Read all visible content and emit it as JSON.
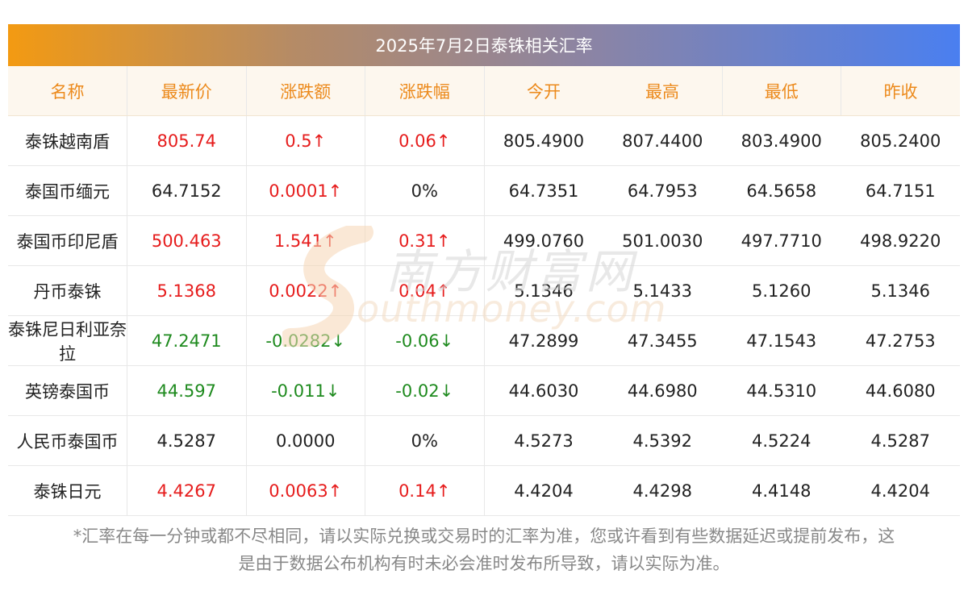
{
  "title": "2025年7月2日泰铢相关汇率",
  "headers": [
    "名称",
    "最新价",
    "涨跌额",
    "涨跌幅",
    "今开",
    "最高",
    "最低",
    "昨收"
  ],
  "rows": [
    {
      "name": "泰铢越南盾",
      "latest": "805.74",
      "change": "0.5↑",
      "pct": "0.06↑",
      "open": "805.4900",
      "high": "807.4400",
      "low": "803.4900",
      "prev": "805.2400",
      "trend": "up"
    },
    {
      "name": "泰国币缅元",
      "latest": "64.7152",
      "change": "0.0001↑",
      "pct": "0%",
      "open": "64.7351",
      "high": "64.7953",
      "low": "64.5658",
      "prev": "64.7151",
      "trend": "flat-up"
    },
    {
      "name": "泰国币印尼盾",
      "latest": "500.463",
      "change": "1.541↑",
      "pct": "0.31↑",
      "open": "499.0760",
      "high": "501.0030",
      "low": "497.7710",
      "prev": "498.9220",
      "trend": "up"
    },
    {
      "name": "丹币泰铢",
      "latest": "5.1368",
      "change": "0.0022↑",
      "pct": "0.04↑",
      "open": "5.1346",
      "high": "5.1433",
      "low": "5.1260",
      "prev": "5.1346",
      "trend": "up"
    },
    {
      "name": "泰铢尼日利亚奈拉",
      "latest": "47.2471",
      "change": "-0.0282↓",
      "pct": "-0.06↓",
      "open": "47.2899",
      "high": "47.3455",
      "low": "47.1543",
      "prev": "47.2753",
      "trend": "down"
    },
    {
      "name": "英镑泰国币",
      "latest": "44.597",
      "change": "-0.011↓",
      "pct": "-0.02↓",
      "open": "44.6030",
      "high": "44.6980",
      "low": "44.5310",
      "prev": "44.6080",
      "trend": "down"
    },
    {
      "name": "人民币泰国币",
      "latest": "4.5287",
      "change": "0.0000",
      "pct": "0%",
      "open": "4.5273",
      "high": "4.5392",
      "low": "4.5224",
      "prev": "4.5287",
      "trend": "flat"
    },
    {
      "name": "泰铢日元",
      "latest": "4.4267",
      "change": "0.0063↑",
      "pct": "0.14↑",
      "open": "4.4204",
      "high": "4.4298",
      "low": "4.4148",
      "prev": "4.4204",
      "trend": "up"
    }
  ],
  "footnote_line1": "*汇率在每一分钟或都不尽相同，请以实际兑换或交易时的汇率为准，您或许看到有些数据延迟或提前发布，这",
  "footnote_line2": "是由于数据公布机构有时未必会准时发布所导致，请以实际为准。",
  "watermark": {
    "cn": "南方财富网",
    "en": "outhmoney.com"
  },
  "colors": {
    "up": "#e61c1c",
    "down": "#1e8a1e",
    "header_text": "#ec8a1c",
    "header_bg": "#fdf7ee",
    "title_start": "#f39a12",
    "title_end": "#4a7ff0"
  }
}
